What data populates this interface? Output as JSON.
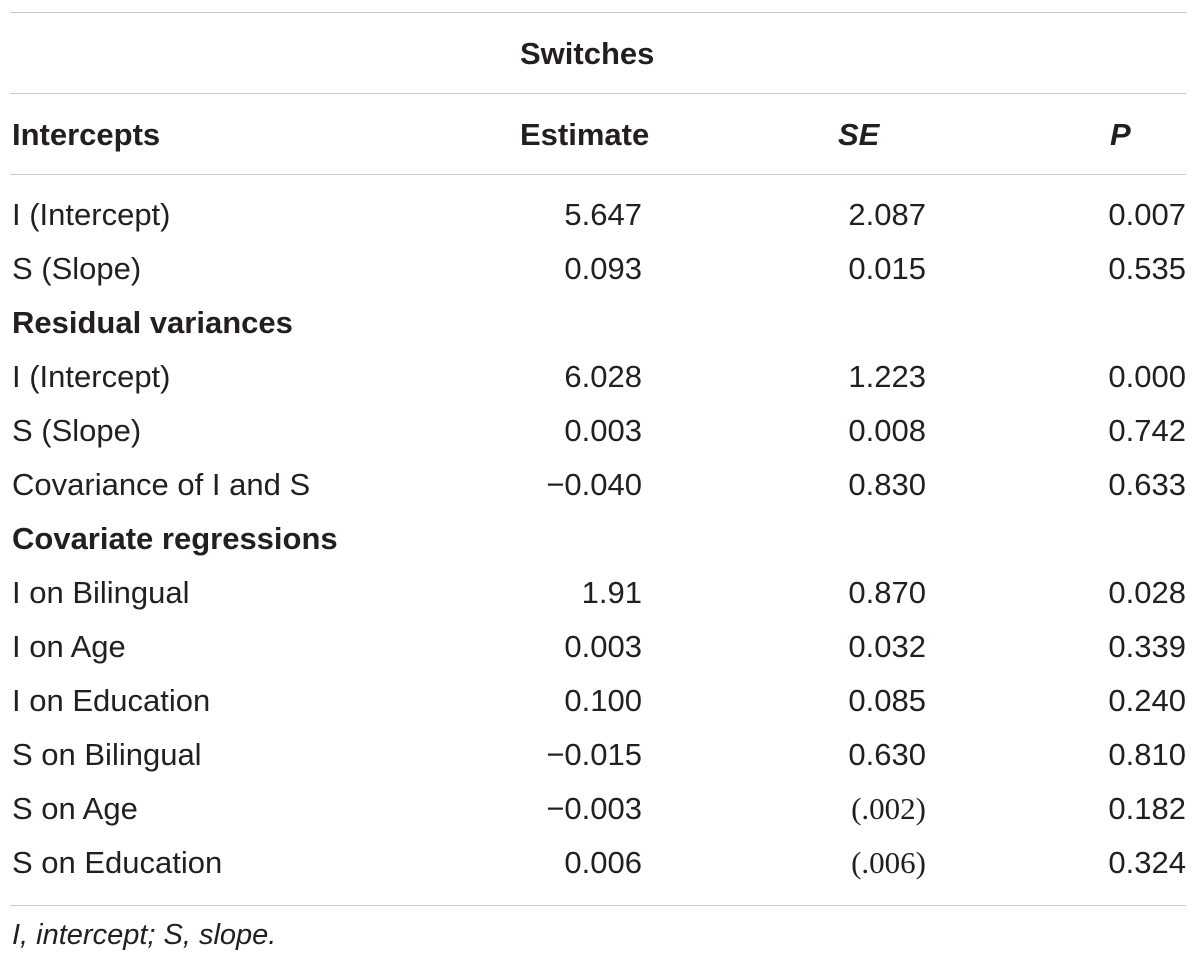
{
  "table": {
    "group_header": "Switches",
    "columns": {
      "label": "Intercepts",
      "estimate": "Estimate",
      "se": "SE",
      "p": "P"
    },
    "rows": [
      {
        "type": "data",
        "label": "I (Intercept)",
        "estimate": "5.647",
        "se": "2.087",
        "p": "0.007"
      },
      {
        "type": "data",
        "label": "S (Slope)",
        "estimate": "0.093",
        "se": "0.015",
        "p": "0.535"
      },
      {
        "type": "section",
        "label": "Residual variances"
      },
      {
        "type": "data",
        "label": "I (Intercept)",
        "estimate": "6.028",
        "se": "1.223",
        "p": "0.000"
      },
      {
        "type": "data",
        "label": "S (Slope)",
        "estimate": "0.003",
        "se": "0.008",
        "p": "0.742"
      },
      {
        "type": "data",
        "label": "Covariance of I and S",
        "estimate": "−0.040",
        "se": "0.830",
        "p": "0.633"
      },
      {
        "type": "section",
        "label": "Covariate regressions"
      },
      {
        "type": "data",
        "label": "I on Bilingual",
        "estimate": "1.91",
        "se": "0.870",
        "p": "0.028"
      },
      {
        "type": "data",
        "label": "I on Age",
        "estimate": "0.003",
        "se": "0.032",
        "p": "0.339"
      },
      {
        "type": "data",
        "label": "I on Education",
        "estimate": "0.100",
        "se": "0.085",
        "p": "0.240"
      },
      {
        "type": "data",
        "label": "S on Bilingual",
        "estimate": "−0.015",
        "se": "0.630",
        "p": "0.810"
      },
      {
        "type": "data",
        "label": "S on Age",
        "estimate": "−0.003",
        "se": "(.002)",
        "p": "0.182",
        "se_serif": true
      },
      {
        "type": "data",
        "label": "S on Education",
        "estimate": "0.006",
        "se": "(.006)",
        "p": "0.324",
        "se_serif": true
      }
    ]
  },
  "footnote": "I, intercept; S, slope."
}
